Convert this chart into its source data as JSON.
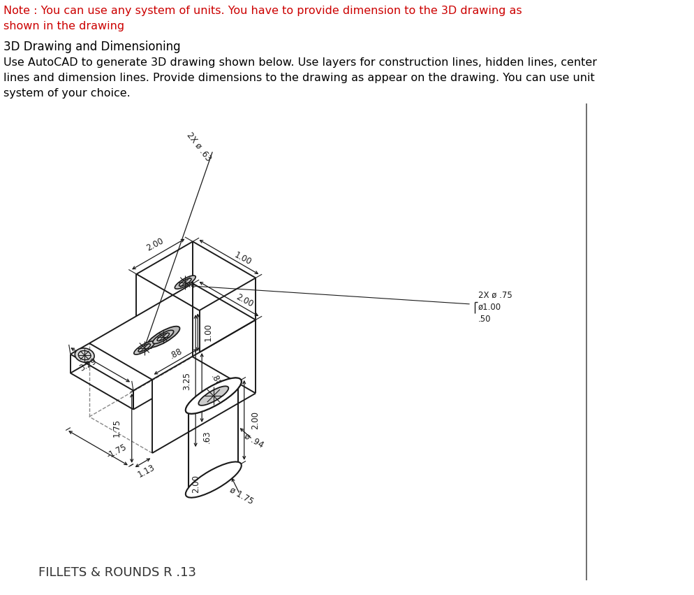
{
  "note_text_line1": "Note : You can use any system of units. You have to provide dimension to the 3D drawing as",
  "note_text_line2": "shown in the drawing",
  "title_text": "3D Drawing and Dimensioning",
  "body_text_line1": "Use AutoCAD to generate 3D drawing shown below. Use layers for construction lines, hidden lines, center",
  "body_text_line2": "lines and dimension lines. Provide dimensions to the drawing as appear on the drawing. You can use unit",
  "body_text_line3": "system of your choice.",
  "footer_text": "FILLETS & ROUNDS R .13",
  "note_color": "#cc0000",
  "title_color": "#000000",
  "body_color": "#000000",
  "drawing_color": "#1a1a1a",
  "bg_color": "#ffffff",
  "fig_width": 9.95,
  "fig_height": 8.51
}
